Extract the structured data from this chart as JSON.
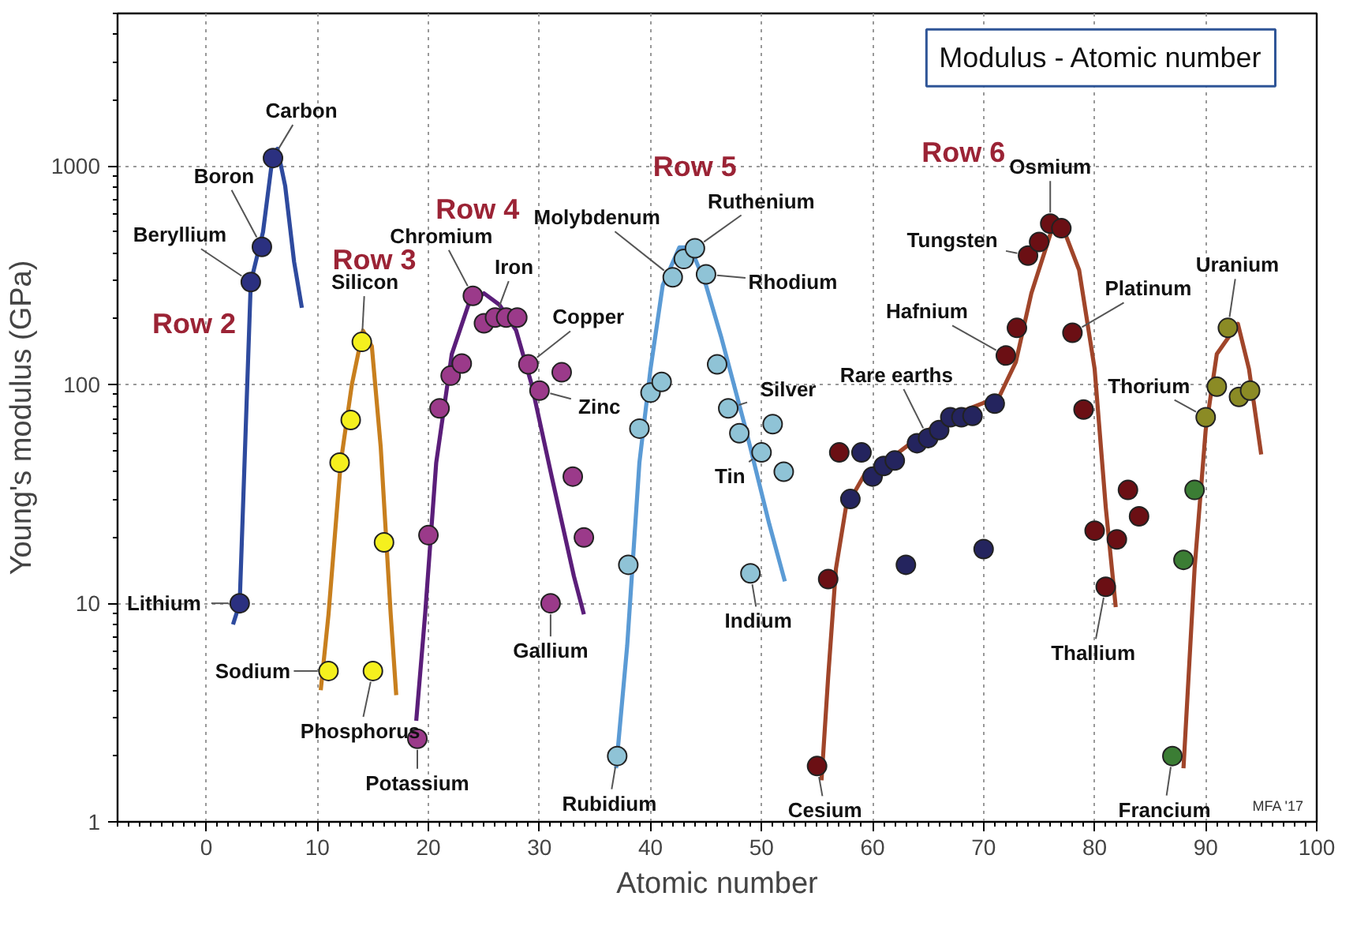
{
  "chart_data": {
    "type": "scatter",
    "title": "Modulus - Atomic number",
    "xlabel": "Atomic number",
    "ylabel": "Young's modulus (GPa)",
    "xlim": [
      -8,
      100
    ],
    "ylim": [
      1,
      5000
    ],
    "xticks": [
      0,
      10,
      20,
      30,
      40,
      50,
      60,
      70,
      80,
      90,
      100
    ],
    "yticks": [
      1,
      10,
      100,
      1000
    ],
    "log": "y",
    "grid": true,
    "marker": "circle",
    "series": [
      {
        "name": "Row 2",
        "color": "#2b3080",
        "x": [
          3,
          4,
          5,
          6
        ],
        "values": [
          10,
          295,
          427,
          1090
        ]
      },
      {
        "name": "Row 3",
        "color": "#f5f01e",
        "x": [
          11,
          12,
          13,
          14,
          15,
          16
        ],
        "values": [
          4.9,
          44,
          69,
          157,
          4.9,
          19
        ]
      },
      {
        "name": "Row 4",
        "color": "#9b3a8a",
        "x": [
          19,
          20,
          21,
          22,
          23,
          24,
          25,
          26,
          27,
          28,
          29,
          30,
          31,
          32,
          33,
          34
        ],
        "values": [
          2.4,
          20.5,
          78,
          110,
          125,
          255,
          191,
          203,
          203,
          203,
          124,
          94,
          10,
          114,
          38,
          20
        ]
      },
      {
        "name": "Row 5",
        "color": "#8fc3d6",
        "x": [
          37,
          38,
          39,
          40,
          41,
          42,
          43,
          44,
          45,
          46,
          47,
          48,
          49,
          50,
          51,
          52
        ],
        "values": [
          2,
          15,
          63,
          92,
          103,
          310,
          376,
          421,
          320,
          124,
          78,
          60,
          13.7,
          49,
          66,
          40
        ]
      },
      {
        "name": "Row 6",
        "color": "#6b0f14",
        "x": [
          55,
          56,
          57,
          72,
          73,
          74,
          75,
          76,
          77,
          78,
          79,
          80,
          81,
          82,
          83,
          84
        ],
        "values": [
          1.8,
          12.9,
          49,
          136,
          182,
          390,
          450,
          546,
          520,
          173,
          77,
          21.5,
          11.9,
          19.6,
          33,
          25
        ]
      },
      {
        "color": "#24245e",
        "x": [
          58,
          59,
          60,
          61,
          62,
          63,
          64,
          65,
          66,
          67,
          68,
          69,
          70,
          71
        ],
        "values": [
          30,
          49,
          38,
          42.5,
          45,
          15,
          54,
          57,
          62,
          71,
          71,
          72,
          17.7,
          82
        ]
      },
      {
        "color": "#3b7d34",
        "x": [
          87,
          88,
          89
        ],
        "values": [
          2,
          15.8,
          33
        ]
      },
      {
        "color": "#8b8b25",
        "x": [
          90,
          91,
          92,
          93,
          94
        ],
        "values": [
          71,
          98,
          182,
          88,
          94
        ]
      },
      {
        "type": "line",
        "marker": "none",
        "color": "#2e4a9e",
        "x": [
          2.4,
          3,
          4,
          5.1,
          6,
          6.4,
          7.1,
          7.9,
          8.6
        ],
        "values": [
          8,
          10,
          295,
          500,
          1140,
          1200,
          810,
          365,
          225
        ]
      },
      {
        "type": "line",
        "marker": "none",
        "color": "#c87f1e",
        "x": [
          10.3,
          11,
          12.1,
          13.1,
          14.1,
          14.9,
          15.7,
          16.6,
          17.1
        ],
        "values": [
          4,
          8.9,
          44,
          100,
          177,
          150,
          52,
          8.9,
          3.8
        ]
      },
      {
        "type": "line",
        "marker": "none",
        "color": "#5b1e7a",
        "x": [
          18.9,
          19.7,
          20.7,
          22.1,
          23.6,
          25,
          26.4,
          27.9,
          29.3,
          31.1,
          33.1,
          34
        ],
        "values": [
          2.9,
          8.9,
          44,
          138,
          232,
          262,
          232,
          177,
          100,
          38,
          13.3,
          8.9
        ]
      },
      {
        "type": "line",
        "marker": "none",
        "color": "#5b9bd5",
        "x": [
          36.9,
          37.9,
          39,
          40,
          41.1,
          42.6,
          43.6,
          45,
          46.4,
          48.6,
          50.7,
          52.1
        ],
        "values": [
          1.76,
          6.4,
          44,
          118,
          285,
          425,
          425,
          285,
          163,
          62,
          23,
          12.6
        ]
      },
      {
        "type": "line",
        "marker": "none",
        "color": "#a0452a",
        "x": [
          55.4,
          56,
          56.7,
          57.6,
          59.3,
          62.1,
          65,
          67.9,
          71.4,
          72.9,
          74.3,
          76.1,
          77.1,
          78.6,
          80,
          81,
          81.9
        ],
        "values": [
          1.55,
          4.6,
          14.4,
          27.5,
          39,
          48,
          62,
          75,
          88,
          127,
          262,
          505,
          530,
          335,
          118,
          27.5,
          9.6
        ]
      },
      {
        "type": "line",
        "marker": "none",
        "color": "#a0452a",
        "x": [
          88,
          89,
          90,
          91,
          92.9,
          93.9,
          95
        ],
        "values": [
          1.76,
          14.4,
          62,
          138,
          190,
          118,
          48
        ]
      }
    ],
    "annotations": [
      {
        "text": "Carbon",
        "x": 6,
        "y": 1090
      },
      {
        "text": "Boron",
        "x": 5,
        "y": 427
      },
      {
        "text": "Beryllium",
        "x": 4,
        "y": 295
      },
      {
        "text": "Lithium",
        "x": 3,
        "y": 10
      },
      {
        "text": "Silicon",
        "x": 14,
        "y": 157
      },
      {
        "text": "Sodium",
        "x": 11,
        "y": 4.9
      },
      {
        "text": "Phosphorus",
        "x": 15,
        "y": 4.9
      },
      {
        "text": "Potassium",
        "x": 19,
        "y": 2.4
      },
      {
        "text": "Chromium",
        "x": 24,
        "y": 255
      },
      {
        "text": "Iron",
        "x": 26,
        "y": 203
      },
      {
        "text": "Copper",
        "x": 29,
        "y": 124
      },
      {
        "text": "Zinc",
        "x": 30,
        "y": 94
      },
      {
        "text": "Gallium",
        "x": 31,
        "y": 10
      },
      {
        "text": "Molybdenum",
        "x": 42,
        "y": 310
      },
      {
        "text": "Ruthenium",
        "x": 44,
        "y": 421
      },
      {
        "text": "Rhodium",
        "x": 45,
        "y": 320
      },
      {
        "text": "Silver",
        "x": 47,
        "y": 78
      },
      {
        "text": "Tin",
        "x": 50,
        "y": 49
      },
      {
        "text": "Indium",
        "x": 49,
        "y": 13.7
      },
      {
        "text": "Rubidium",
        "x": 37,
        "y": 2
      },
      {
        "text": "Cesium",
        "x": 55,
        "y": 1.8
      },
      {
        "text": "Rare earths",
        "x": 65,
        "y": 57
      },
      {
        "text": "Hafnium",
        "x": 72,
        "y": 136
      },
      {
        "text": "Tungsten",
        "x": 74,
        "y": 390
      },
      {
        "text": "Osmium",
        "x": 76,
        "y": 546
      },
      {
        "text": "Platinum",
        "x": 78,
        "y": 173
      },
      {
        "text": "Thallium",
        "x": 81,
        "y": 11.9
      },
      {
        "text": "Francium",
        "x": 87,
        "y": 2
      },
      {
        "text": "Thorium",
        "x": 90,
        "y": 71
      },
      {
        "text": "Uranium",
        "x": 92,
        "y": 182
      },
      "MFA '17"
    ]
  }
}
